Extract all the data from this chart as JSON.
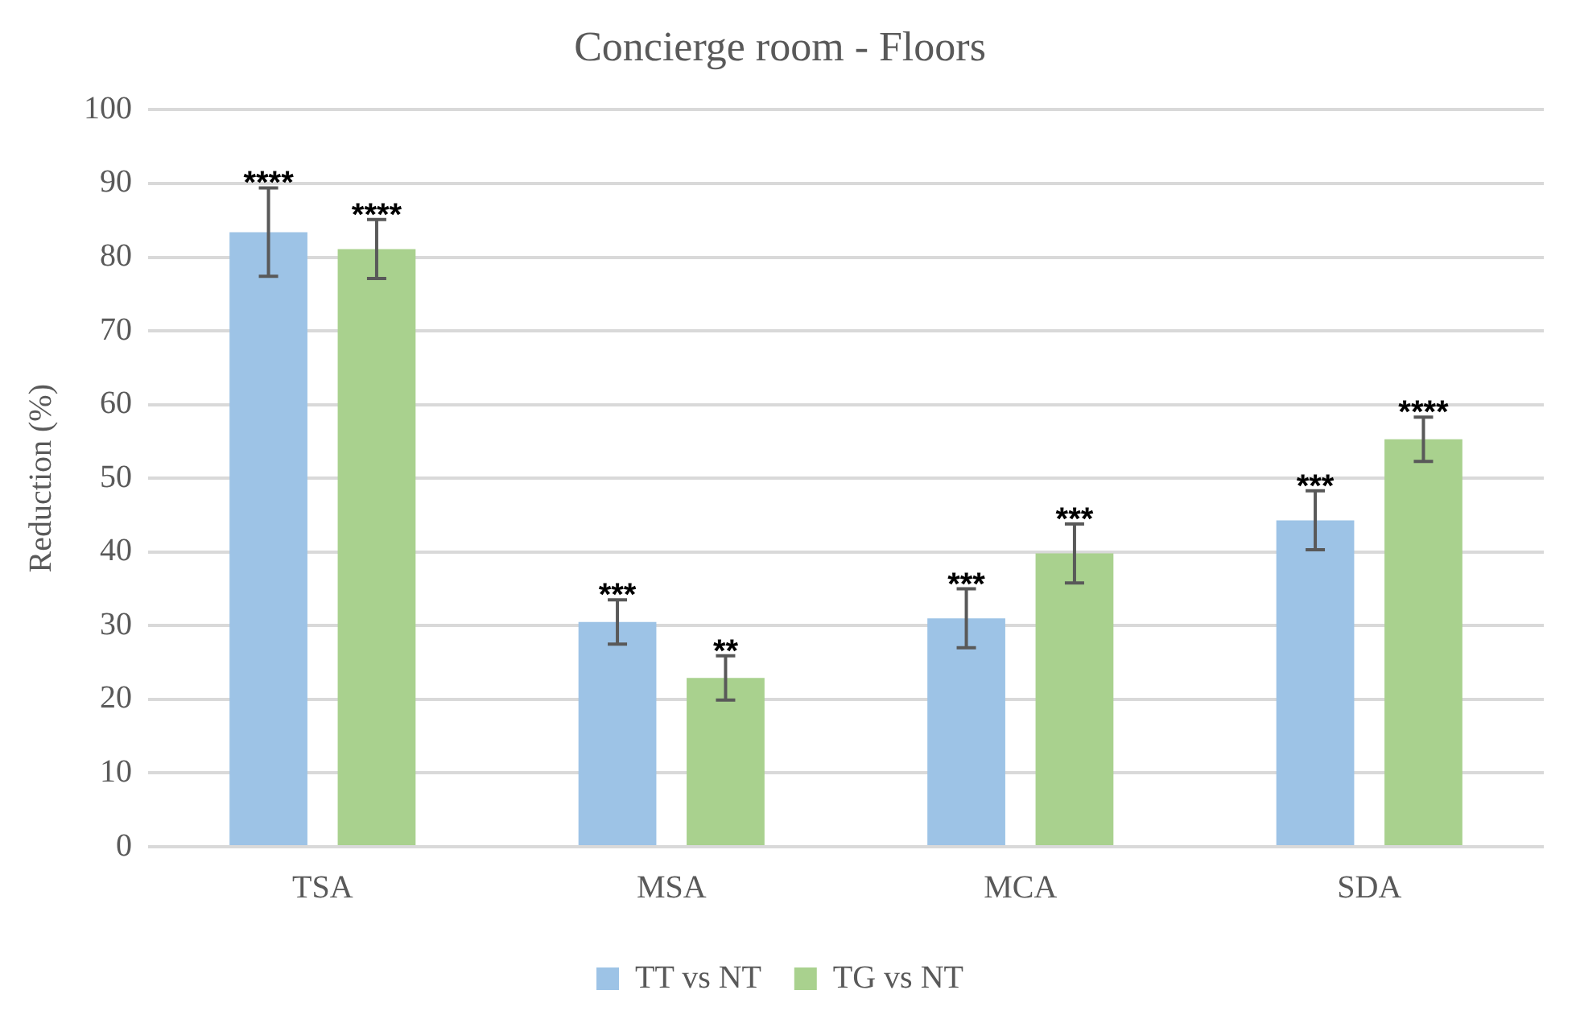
{
  "chart_data": {
    "type": "bar",
    "title": "Concierge room - Floors",
    "ylabel": "Reduction (%)",
    "categories": [
      "TSA",
      "MSA",
      "MCA",
      "SDA"
    ],
    "series": [
      {
        "name": "TT vs NT",
        "color": "#9dc3e6",
        "values": [
          83.4,
          30.5,
          31.0,
          44.3
        ],
        "errors": [
          6,
          3,
          4,
          4
        ]
      },
      {
        "name": "TG vs NT",
        "color": "#a9d18e",
        "values": [
          81.1,
          22.9,
          39.8,
          55.3
        ],
        "errors": [
          4,
          3,
          4,
          3
        ]
      }
    ],
    "ylim": [
      0,
      100
    ],
    "yticks": [
      0,
      10,
      20,
      30,
      40,
      50,
      60,
      70,
      80,
      90,
      100
    ],
    "grid": "y",
    "legend": "bottom",
    "annotations": [
      "****",
      "****",
      "***",
      "**",
      "***",
      "***",
      "***",
      "****"
    ]
  }
}
